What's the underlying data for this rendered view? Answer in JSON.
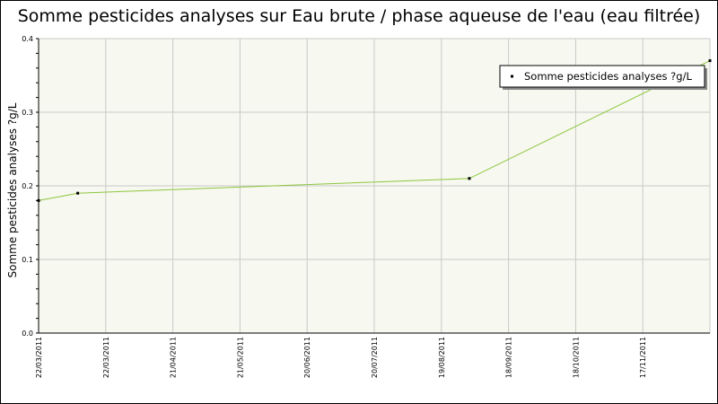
{
  "chart_data": {
    "type": "line",
    "title": "Somme pesticides analyses sur Eau brute / phase aqueuse de l'eau (eau filtrée)",
    "xlabel": "",
    "ylabel": "Somme pesticides analyses ?g/L",
    "x_ticks": [
      "22/03/2011",
      "22/03/2011",
      "21/04/2011",
      "21/05/2011",
      "20/06/2011",
      "20/07/2011",
      "19/08/2011",
      "18/09/2011",
      "18/10/2011",
      "17/11/2011"
    ],
    "y_ticks": [
      "0.0",
      "0.1",
      "0.2",
      "0.3",
      "0.4"
    ],
    "ylim": [
      0,
      0.4
    ],
    "grid": true,
    "legend_position": "top-right",
    "series": [
      {
        "name": "Somme pesticides analyses ?g/L",
        "color": "#8cc63f",
        "points": [
          {
            "x": "22/03/2011",
            "y": 0.18
          },
          {
            "x": "05/04/2011",
            "y": 0.19
          },
          {
            "x": "23/08/2011",
            "y": 0.21
          },
          {
            "x": "17/11/2011",
            "y": 0.37
          }
        ]
      }
    ]
  },
  "colors": {
    "plot_background": "#f7f8ef",
    "grid": "#c9c9c9",
    "line": "#8cc63f",
    "marker": "#000000"
  }
}
